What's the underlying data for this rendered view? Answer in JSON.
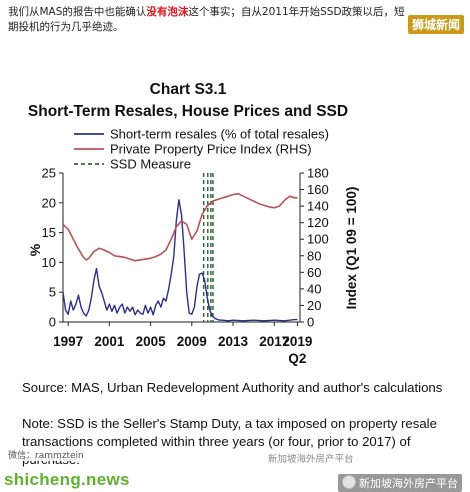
{
  "intro": {
    "part1": "我们从MAS的报告中也能确认",
    "highlight": "没有泡沫",
    "part2": "这个事实；自从2011年开始SSD政策以后，短期投机的行为几乎绝迹。"
  },
  "watermarks": {
    "top_right": "狮城新闻",
    "user": "微信：rammztein",
    "mid": "新加坡海外房产平台",
    "bottom_left": "shicheng.news",
    "bottom_right": "新加坡海外房产平台"
  },
  "notes": {
    "source": "Source: MAS, Urban Redevelopment Authority and author's calculations",
    "note": "Note: SSD is the Seller's Stamp Duty, a tax imposed on property resale transactions completed within three years (or four, prior to 2017) of purchase."
  },
  "colors": {
    "resales": "#2b2f86",
    "ppi": "#b5545a",
    "ssd": "#2e6b3c",
    "axis": "#222222"
  },
  "chart_data": {
    "type": "line",
    "title": "Chart S3.1",
    "subtitle": "Short-Term Resales, House Prices and SSD",
    "xlabel": "",
    "ylabel_left": "%",
    "ylabel_right": "Index (Q1 09 = 100)",
    "xlim": [
      1996.5,
      2019.5
    ],
    "ylim_left": [
      0,
      25
    ],
    "ylim_right": [
      0,
      180
    ],
    "left_ticks": [
      0,
      5,
      10,
      15,
      20,
      25
    ],
    "right_ticks": [
      0,
      20,
      40,
      60,
      80,
      100,
      120,
      140,
      160,
      180
    ],
    "x_ticks": [
      {
        "x": 1997,
        "label": "1997"
      },
      {
        "x": 2001,
        "label": "2001"
      },
      {
        "x": 2005,
        "label": "2005"
      },
      {
        "x": 2009,
        "label": "2009"
      },
      {
        "x": 2013,
        "label": "2013"
      },
      {
        "x": 2017,
        "label": "2017"
      },
      {
        "x": 2019.25,
        "label": "2019"
      }
    ],
    "x_extra_label": {
      "x": 2019.25,
      "label": "Q2"
    },
    "grid": false,
    "legend_position": "top",
    "series": [
      {
        "name": "Short-term resales (% of total resales)",
        "axis": "left",
        "color": "#2b2f86",
        "points": [
          [
            1996.5,
            5.0
          ],
          [
            1996.75,
            2.0
          ],
          [
            1997.0,
            1.3
          ],
          [
            1997.25,
            3.5
          ],
          [
            1997.5,
            2.0
          ],
          [
            1997.75,
            3.0
          ],
          [
            1998.0,
            4.5
          ],
          [
            1998.25,
            2.5
          ],
          [
            1998.5,
            1.5
          ],
          [
            1998.75,
            1.0
          ],
          [
            1999.0,
            2.0
          ],
          [
            1999.25,
            4.0
          ],
          [
            1999.5,
            7.0
          ],
          [
            1999.75,
            9.0
          ],
          [
            2000.0,
            6.0
          ],
          [
            2000.25,
            5.0
          ],
          [
            2000.5,
            3.5
          ],
          [
            2000.75,
            2.0
          ],
          [
            2001.0,
            3.0
          ],
          [
            2001.25,
            1.8
          ],
          [
            2001.5,
            2.8
          ],
          [
            2001.75,
            1.5
          ],
          [
            2002.0,
            2.5
          ],
          [
            2002.25,
            3.0
          ],
          [
            2002.5,
            1.5
          ],
          [
            2002.75,
            2.5
          ],
          [
            2003.0,
            1.8
          ],
          [
            2003.25,
            2.5
          ],
          [
            2003.5,
            1.2
          ],
          [
            2003.75,
            2.0
          ],
          [
            2004.0,
            1.5
          ],
          [
            2004.25,
            1.3
          ],
          [
            2004.5,
            2.8
          ],
          [
            2004.75,
            1.5
          ],
          [
            2005.0,
            2.5
          ],
          [
            2005.25,
            1.2
          ],
          [
            2005.5,
            2.8
          ],
          [
            2005.75,
            3.5
          ],
          [
            2006.0,
            2.5
          ],
          [
            2006.25,
            4.0
          ],
          [
            2006.5,
            3.5
          ],
          [
            2006.75,
            5.5
          ],
          [
            2007.0,
            8.0
          ],
          [
            2007.25,
            11.0
          ],
          [
            2007.5,
            17.0
          ],
          [
            2007.75,
            20.5
          ],
          [
            2008.0,
            18.0
          ],
          [
            2008.25,
            12.0
          ],
          [
            2008.5,
            5.0
          ],
          [
            2008.75,
            1.5
          ],
          [
            2009.0,
            1.3
          ],
          [
            2009.25,
            2.5
          ],
          [
            2009.5,
            6.0
          ],
          [
            2009.75,
            8.0
          ],
          [
            2010.0,
            8.2
          ],
          [
            2010.25,
            7.0
          ],
          [
            2010.5,
            4.0
          ],
          [
            2010.75,
            2.0
          ],
          [
            2011.0,
            1.0
          ],
          [
            2011.25,
            0.6
          ],
          [
            2011.5,
            0.4
          ],
          [
            2011.75,
            0.3
          ],
          [
            2012.0,
            0.3
          ],
          [
            2012.5,
            0.2
          ],
          [
            2013.0,
            0.3
          ],
          [
            2014.0,
            0.2
          ],
          [
            2015.0,
            0.3
          ],
          [
            2016.0,
            0.2
          ],
          [
            2017.0,
            0.3
          ],
          [
            2018.0,
            0.2
          ],
          [
            2019.0,
            0.4
          ],
          [
            2019.25,
            0.4
          ]
        ]
      },
      {
        "name": "Private Property Price Index (RHS)",
        "axis": "right",
        "color": "#b5545a",
        "points": [
          [
            1996.5,
            118
          ],
          [
            1997.0,
            112
          ],
          [
            1997.5,
            100
          ],
          [
            1998.0,
            88
          ],
          [
            1998.5,
            78
          ],
          [
            1998.75,
            75
          ],
          [
            1999.0,
            77
          ],
          [
            1999.5,
            85
          ],
          [
            2000.0,
            89
          ],
          [
            2000.5,
            87
          ],
          [
            2001.0,
            84
          ],
          [
            2001.5,
            80
          ],
          [
            2002.0,
            79
          ],
          [
            2002.5,
            78
          ],
          [
            2003.0,
            76
          ],
          [
            2003.5,
            74
          ],
          [
            2004.0,
            75
          ],
          [
            2004.5,
            76
          ],
          [
            2005.0,
            77
          ],
          [
            2005.5,
            79
          ],
          [
            2006.0,
            82
          ],
          [
            2006.5,
            87
          ],
          [
            2007.0,
            100
          ],
          [
            2007.5,
            115
          ],
          [
            2008.0,
            122
          ],
          [
            2008.5,
            118
          ],
          [
            2009.0,
            100
          ],
          [
            2009.5,
            110
          ],
          [
            2010.0,
            130
          ],
          [
            2010.5,
            140
          ],
          [
            2011.0,
            146
          ],
          [
            2011.5,
            148
          ],
          [
            2012.0,
            150
          ],
          [
            2012.5,
            152
          ],
          [
            2013.0,
            154
          ],
          [
            2013.5,
            155
          ],
          [
            2014.0,
            152
          ],
          [
            2014.5,
            149
          ],
          [
            2015.0,
            146
          ],
          [
            2015.5,
            143
          ],
          [
            2016.0,
            141
          ],
          [
            2016.5,
            139
          ],
          [
            2017.0,
            138
          ],
          [
            2017.5,
            140
          ],
          [
            2018.0,
            147
          ],
          [
            2018.5,
            152
          ],
          [
            2019.0,
            150
          ],
          [
            2019.25,
            150
          ]
        ]
      }
    ],
    "ssd_measures": {
      "name": "SSD Measure",
      "color": "#2e6b3c",
      "x": [
        2010.15,
        2010.55,
        2010.85,
        2011.05
      ]
    }
  }
}
